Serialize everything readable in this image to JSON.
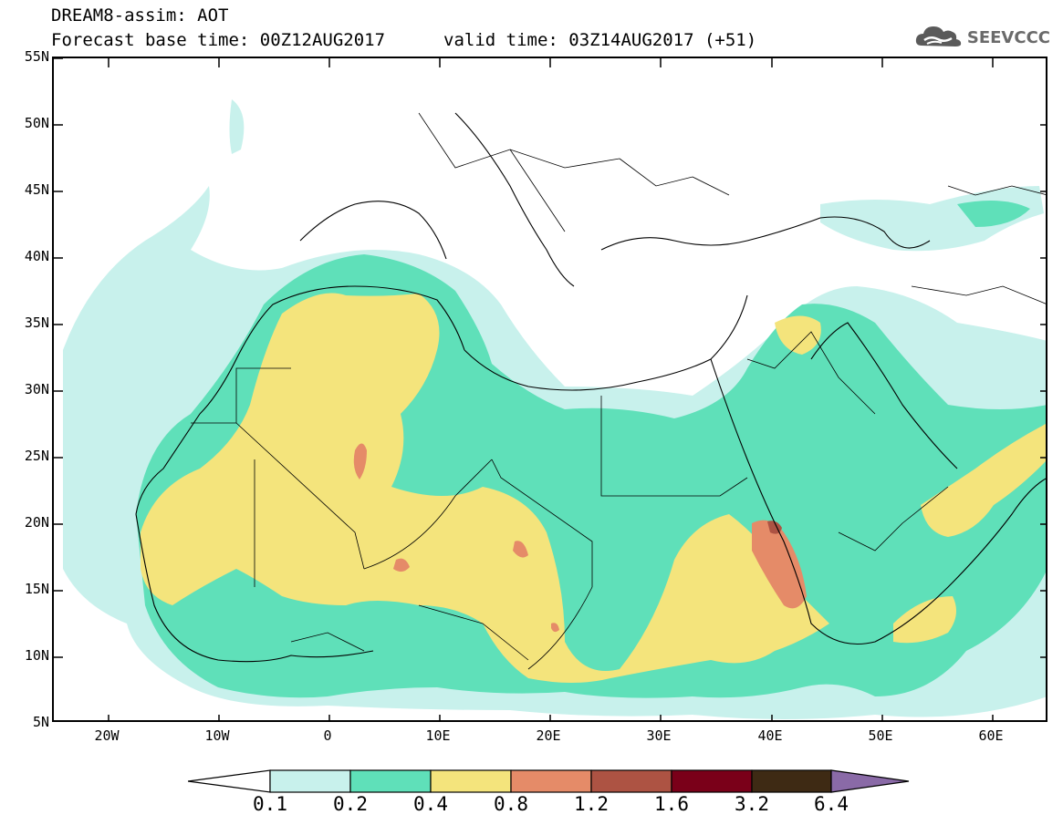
{
  "header": {
    "title_line1": "DREAM8-assim: AOT",
    "base_time": "Forecast base time: 00Z12AUG2017",
    "valid_time": "valid time: 03Z14AUG2017 (+51)"
  },
  "logo": {
    "text": "SEEVCCC",
    "icon": "cloud-icon"
  },
  "axes": {
    "lat_labels": [
      "55N",
      "50N",
      "45N",
      "40N",
      "35N",
      "30N",
      "25N",
      "20N",
      "15N",
      "10N",
      "5N"
    ],
    "lon_labels": [
      "20W",
      "10W",
      "0",
      "10E",
      "20E",
      "30E",
      "40E",
      "50E",
      "60E"
    ],
    "lat_range": [
      5,
      55
    ],
    "lon_range": [
      -25,
      65
    ]
  },
  "legend": {
    "levels": [
      "0.1",
      "0.2",
      "0.4",
      "0.8",
      "1.2",
      "1.6",
      "3.2",
      "6.4"
    ],
    "colors": [
      "#ffffff",
      "#c8f1ec",
      "#5fe0b9",
      "#f4e47c",
      "#e58b68",
      "#ad5343",
      "#7a0019",
      "#3e2a14",
      "#8a6aa7"
    ]
  }
}
